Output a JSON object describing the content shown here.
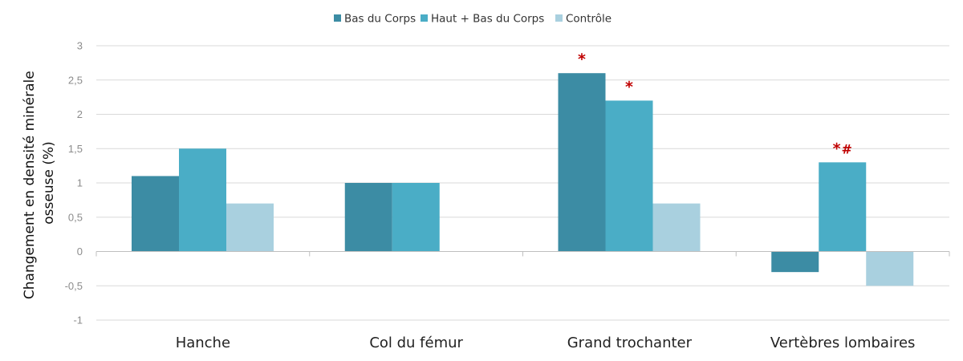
{
  "chart_data": {
    "type": "bar",
    "ylabel_lines": [
      "Changement en densité minérale",
      "osseuse (%)"
    ],
    "categories": [
      "Hanche",
      "Col du fémur",
      "Grand trochanter",
      "Vertèbres lombaires"
    ],
    "series": [
      {
        "name": "Bas du Corps",
        "color": "#3c8ca4",
        "values": [
          1.1,
          1.0,
          2.6,
          -0.3
        ]
      },
      {
        "name": "Haut + Bas du Corps",
        "color": "#4aadc6",
        "values": [
          1.5,
          1.0,
          2.2,
          1.3
        ]
      },
      {
        "name": "Contrôle",
        "color": "#a9d0df",
        "values": [
          0.7,
          null,
          0.7,
          -0.5
        ]
      }
    ],
    "ylim": [
      -1,
      3
    ],
    "yticks": [
      -1,
      -0.5,
      0,
      0.5,
      1,
      1.5,
      2,
      2.5,
      3
    ],
    "ytick_labels": [
      "-1",
      "-0,5",
      "0",
      "0,5",
      "1",
      "1,5",
      "2",
      "2,5",
      "3"
    ],
    "grid": true,
    "legend_position": "top-center",
    "annotations": [
      {
        "category": 2,
        "series": 0,
        "text": "*"
      },
      {
        "category": 2,
        "series": 1,
        "text": "*"
      },
      {
        "category": 3,
        "series": 1,
        "text": "*",
        "text2": "#"
      }
    ]
  }
}
